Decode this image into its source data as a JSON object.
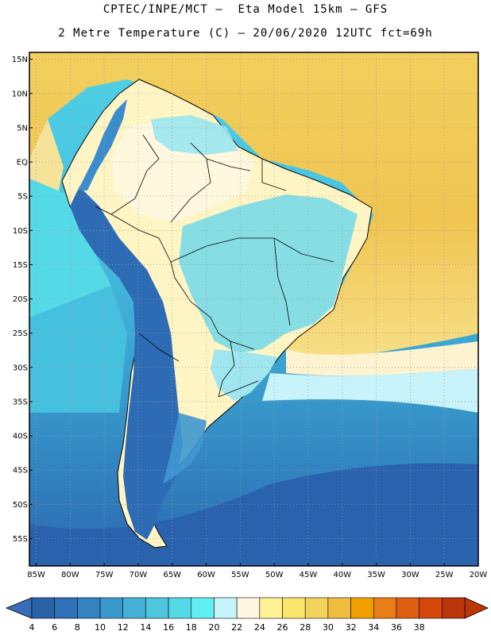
{
  "header": {
    "line1": "CPTEC/INPE/MCT –  Eta Model 15km – GFS",
    "line2": "2 Metre Temperature (C) – 20/06/2020 12UTC fct=69h"
  },
  "map": {
    "variable": "2 Metre Temperature",
    "units": "C",
    "lon_range": [
      -86,
      -20
    ],
    "lat_range": [
      -59,
      16
    ],
    "lat_ticks": [
      "15N",
      "10N",
      "5N",
      "EQ",
      "5S",
      "10S",
      "15S",
      "20S",
      "25S",
      "30S",
      "35S",
      "40S",
      "45S",
      "50S",
      "55S"
    ],
    "lon_ticks": [
      "85W",
      "80W",
      "75W",
      "70W",
      "65W",
      "60W",
      "55W",
      "50W",
      "45W",
      "40W",
      "35W",
      "30W",
      "25W",
      "20W"
    ],
    "colors": {
      "ocean_far_south": "#2a63ad",
      "ocean_south": "#3aa0cf",
      "ocean_mid": "#4fd0e4",
      "ocean_sub": "#c8f3fa",
      "atlantic_tropical": "#f2d16e",
      "pacific_tropical": "#f6e39a",
      "andes": "#2d6bb5",
      "amazon": "#fff7d9",
      "brazil_cool": "#79dbe8",
      "frame": "#000000",
      "grid": "#9a9a9a"
    }
  },
  "colorbar": {
    "labels": [
      "4",
      "6",
      "8",
      "10",
      "12",
      "14",
      "16",
      "18",
      "20",
      "22",
      "24",
      "26",
      "28",
      "30",
      "32",
      "34",
      "36",
      "38"
    ],
    "colors": [
      "#2a62a7",
      "#2e71b7",
      "#3582c2",
      "#3c98cc",
      "#44b0d6",
      "#4dc6de",
      "#54dae6",
      "#60f0f2",
      "#c8f4fb",
      "#fff7e2",
      "#fff294",
      "#f8e76a",
      "#f4d35a",
      "#efbd3f",
      "#f0a000",
      "#e97d18",
      "#df5f12",
      "#d4480c",
      "#bc3408"
    ],
    "low_arrow_color": "#3a6db9",
    "high_arrow_color": "#bd3607"
  }
}
